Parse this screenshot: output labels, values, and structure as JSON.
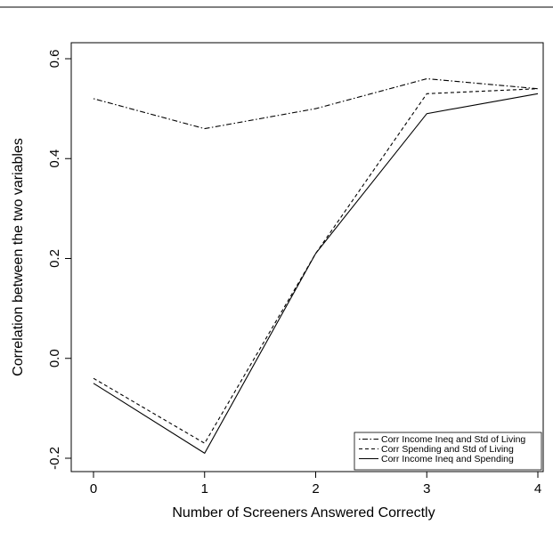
{
  "chart_data": {
    "type": "line",
    "title": "",
    "xlabel": "Number of Screeners Answered Correctly",
    "ylabel": "Correlation between the two variables",
    "x": [
      0,
      1,
      2,
      3,
      4
    ],
    "xlim": [
      0,
      4
    ],
    "ylim": [
      -0.2,
      0.6
    ],
    "x_ticks": [
      "0",
      "1",
      "2",
      "3",
      "4"
    ],
    "y_ticks": [
      "-0.2",
      "0.0",
      "0.2",
      "0.4",
      "0.6"
    ],
    "grid": false,
    "legend_position": "bottom-right",
    "series": [
      {
        "name": "Corr Income Ineq and Std of Living",
        "values": [
          0.52,
          0.46,
          0.5,
          0.56,
          0.54
        ],
        "line_style": "dotdash",
        "color": "#000000"
      },
      {
        "name": "Corr Spending and Std of Living",
        "values": [
          -0.04,
          -0.17,
          0.21,
          0.53,
          0.54
        ],
        "line_style": "dashed",
        "color": "#000000"
      },
      {
        "name": "Corr Income Ineq and Spending",
        "values": [
          -0.05,
          -0.19,
          0.21,
          0.49,
          0.53
        ],
        "line_style": "solid",
        "color": "#000000"
      }
    ]
  }
}
